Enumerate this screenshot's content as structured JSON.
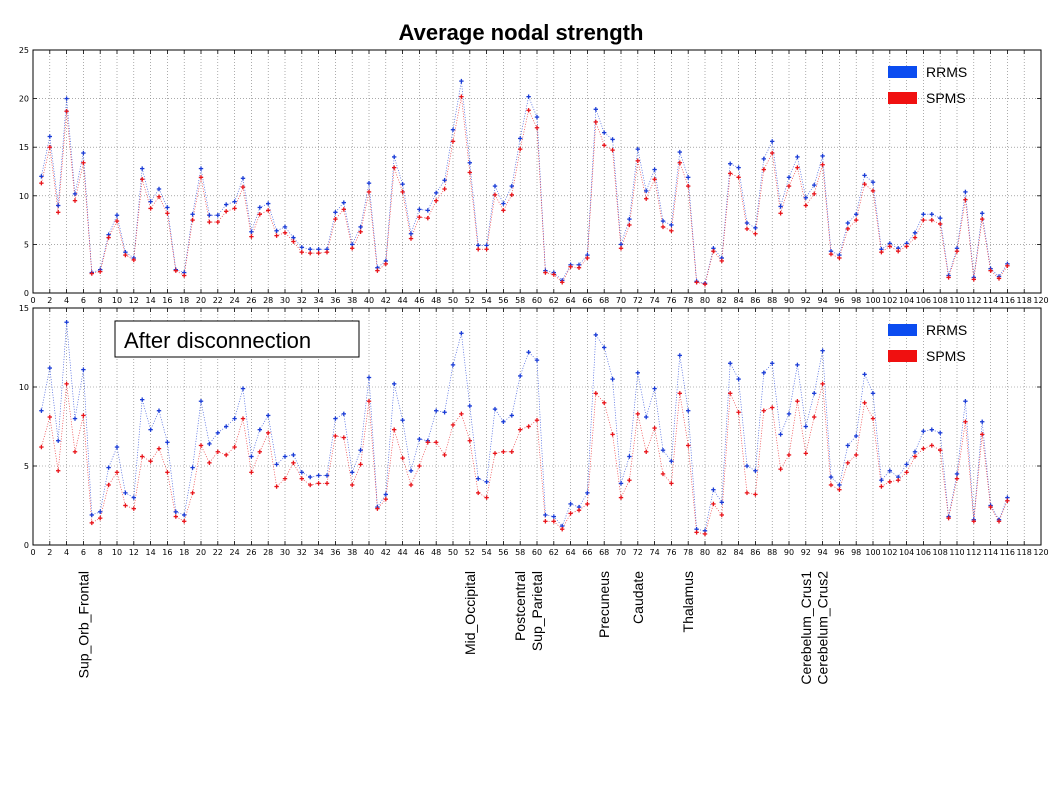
{
  "figure_title": "Average nodal strength",
  "colors": {
    "RRMS": "#1a3cd6",
    "SPMS": "#e8141a",
    "legend_RRMS": "#0b4cf0",
    "legend_SPMS": "#f01010",
    "grid": "#777777"
  },
  "region_labels": [
    {
      "label": "Sup_Orb_Frontal",
      "node": 6
    },
    {
      "label": "Mid_Occipital",
      "node": 52
    },
    {
      "label": "Postcentral",
      "node": 58
    },
    {
      "label": "Sup_Parietal",
      "node": 60
    },
    {
      "label": "Precuneus",
      "node": 68
    },
    {
      "label": "Caudate",
      "node": 72
    },
    {
      "label": "Thalamus",
      "node": 78
    },
    {
      "label": "Cerebelum_Crus1",
      "node": 92
    },
    {
      "label": "Cerebelum_Crus2",
      "node": 94
    }
  ],
  "chart_data": [
    {
      "type": "scatter",
      "title": "Average nodal strength",
      "annotation": "",
      "xlim": [
        0,
        120
      ],
      "ylim": [
        0,
        25
      ],
      "xticks": [
        0,
        2,
        4,
        6,
        8,
        10,
        12,
        14,
        16,
        18,
        20,
        22,
        24,
        26,
        28,
        30,
        32,
        34,
        36,
        38,
        40,
        42,
        44,
        46,
        48,
        50,
        52,
        54,
        56,
        58,
        60,
        62,
        64,
        66,
        68,
        70,
        72,
        74,
        76,
        78,
        80,
        82,
        84,
        86,
        88,
        90,
        92,
        94,
        96,
        98,
        100,
        102,
        104,
        106,
        108,
        110,
        112,
        114,
        116,
        118,
        120
      ],
      "yticks": [
        0,
        5,
        10,
        15,
        20,
        25
      ],
      "grid": true,
      "legend": "top-right",
      "x": [
        1,
        2,
        3,
        4,
        5,
        6,
        7,
        8,
        9,
        10,
        11,
        12,
        13,
        14,
        15,
        16,
        17,
        18,
        19,
        20,
        21,
        22,
        23,
        24,
        25,
        26,
        27,
        28,
        29,
        30,
        31,
        32,
        33,
        34,
        35,
        36,
        37,
        38,
        39,
        40,
        41,
        42,
        43,
        44,
        45,
        46,
        47,
        48,
        49,
        50,
        51,
        52,
        53,
        54,
        55,
        56,
        57,
        58,
        59,
        60,
        61,
        62,
        63,
        64,
        65,
        66,
        67,
        68,
        69,
        70,
        71,
        72,
        73,
        74,
        75,
        76,
        77,
        78,
        79,
        80,
        81,
        82,
        83,
        84,
        85,
        86,
        87,
        88,
        89,
        90,
        91,
        92,
        93,
        94,
        95,
        96,
        97,
        98,
        99,
        100,
        101,
        102,
        103,
        104,
        105,
        106,
        107,
        108,
        109,
        110,
        111,
        112,
        113,
        114,
        115,
        116
      ],
      "series": [
        {
          "name": "RRMS",
          "values": [
            12.0,
            16.1,
            9.0,
            20.0,
            10.2,
            14.4,
            2.1,
            2.4,
            6.0,
            8.0,
            4.2,
            3.6,
            12.8,
            9.4,
            10.7,
            8.8,
            2.4,
            2.1,
            8.1,
            12.8,
            8.0,
            8.0,
            9.1,
            9.4,
            11.8,
            6.3,
            8.8,
            9.2,
            6.4,
            6.8,
            5.7,
            4.7,
            4.5,
            4.5,
            4.5,
            8.3,
            9.3,
            5.0,
            6.8,
            11.3,
            2.6,
            3.3,
            14.0,
            11.2,
            6.1,
            8.6,
            8.5,
            10.3,
            11.6,
            16.8,
            21.8,
            13.4,
            4.9,
            4.9,
            11.0,
            9.2,
            11.0,
            15.9,
            20.2,
            18.1,
            2.3,
            2.1,
            1.3,
            2.9,
            2.9,
            3.9,
            18.9,
            16.5,
            15.8,
            5.0,
            7.6,
            14.8,
            10.5,
            12.7,
            7.4,
            7.0,
            14.5,
            11.9,
            1.2,
            1.0,
            4.6,
            3.6,
            13.3,
            12.9,
            7.2,
            6.7,
            13.8,
            15.6,
            8.9,
            11.9,
            14.0,
            9.8,
            11.1,
            14.1,
            4.3,
            3.9,
            7.2,
            8.1,
            12.1,
            11.4,
            4.5,
            5.1,
            4.6,
            5.1,
            6.2,
            8.1,
            8.1,
            7.7,
            1.8,
            4.6,
            10.4,
            1.6,
            8.2,
            2.5,
            1.7,
            3.0
          ]
        },
        {
          "name": "SPMS",
          "values": [
            11.3,
            15.0,
            8.3,
            18.7,
            9.5,
            13.4,
            2.0,
            2.2,
            5.7,
            7.4,
            3.9,
            3.4,
            11.7,
            8.7,
            9.9,
            8.2,
            2.3,
            1.8,
            7.5,
            11.9,
            7.3,
            7.3,
            8.4,
            8.7,
            10.9,
            5.8,
            8.1,
            8.5,
            5.9,
            6.2,
            5.3,
            4.2,
            4.1,
            4.1,
            4.2,
            7.6,
            8.6,
            4.6,
            6.3,
            10.4,
            2.3,
            3.0,
            12.9,
            10.4,
            5.6,
            7.8,
            7.7,
            9.5,
            10.7,
            15.6,
            20.2,
            12.4,
            4.5,
            4.5,
            10.1,
            8.5,
            10.1,
            14.8,
            18.8,
            17.0,
            2.1,
            1.9,
            1.1,
            2.7,
            2.6,
            3.6,
            17.6,
            15.2,
            14.7,
            4.6,
            7.0,
            13.6,
            9.7,
            11.7,
            6.8,
            6.4,
            13.4,
            11.0,
            1.1,
            0.9,
            4.3,
            3.3,
            12.3,
            11.9,
            6.6,
            6.1,
            12.7,
            14.4,
            8.2,
            11.0,
            12.9,
            9.0,
            10.2,
            13.2,
            4.0,
            3.6,
            6.6,
            7.5,
            11.2,
            10.5,
            4.2,
            4.8,
            4.3,
            4.8,
            5.7,
            7.5,
            7.5,
            7.1,
            1.6,
            4.3,
            9.6,
            1.4,
            7.6,
            2.3,
            1.5,
            2.8
          ]
        }
      ]
    },
    {
      "type": "scatter",
      "title": "",
      "annotation": "After disconnection",
      "xlim": [
        0,
        120
      ],
      "ylim": [
        0,
        15
      ],
      "xticks": [
        0,
        2,
        4,
        6,
        8,
        10,
        12,
        14,
        16,
        18,
        20,
        22,
        24,
        26,
        28,
        30,
        32,
        34,
        36,
        38,
        40,
        42,
        44,
        46,
        48,
        50,
        52,
        54,
        56,
        58,
        60,
        62,
        64,
        66,
        68,
        70,
        72,
        74,
        76,
        78,
        80,
        82,
        84,
        86,
        88,
        90,
        92,
        94,
        96,
        98,
        100,
        102,
        104,
        106,
        108,
        110,
        112,
        114,
        116,
        118,
        120
      ],
      "yticks": [
        0,
        5,
        10,
        15
      ],
      "grid": true,
      "legend": "top-right",
      "x": [
        1,
        2,
        3,
        4,
        5,
        6,
        7,
        8,
        9,
        10,
        11,
        12,
        13,
        14,
        15,
        16,
        17,
        18,
        19,
        20,
        21,
        22,
        23,
        24,
        25,
        26,
        27,
        28,
        29,
        30,
        31,
        32,
        33,
        34,
        35,
        36,
        37,
        38,
        39,
        40,
        41,
        42,
        43,
        44,
        45,
        46,
        47,
        48,
        49,
        50,
        51,
        52,
        53,
        54,
        55,
        56,
        57,
        58,
        59,
        60,
        61,
        62,
        63,
        64,
        65,
        66,
        67,
        68,
        69,
        70,
        71,
        72,
        73,
        74,
        75,
        76,
        77,
        78,
        79,
        80,
        81,
        82,
        83,
        84,
        85,
        86,
        87,
        88,
        89,
        90,
        91,
        92,
        93,
        94,
        95,
        96,
        97,
        98,
        99,
        100,
        101,
        102,
        103,
        104,
        105,
        106,
        107,
        108,
        109,
        110,
        111,
        112,
        113,
        114,
        115,
        116
      ],
      "series": [
        {
          "name": "RRMS",
          "values": [
            8.5,
            11.2,
            6.6,
            14.1,
            8.0,
            11.1,
            1.9,
            2.1,
            4.9,
            6.2,
            3.3,
            3.0,
            9.2,
            7.3,
            8.5,
            6.5,
            2.1,
            1.9,
            4.9,
            9.1,
            6.4,
            7.1,
            7.5,
            8.0,
            9.9,
            5.6,
            7.3,
            8.2,
            5.1,
            5.6,
            5.7,
            4.6,
            4.3,
            4.4,
            4.4,
            8.0,
            8.3,
            4.6,
            6.0,
            10.6,
            2.4,
            3.2,
            10.2,
            7.9,
            4.7,
            6.7,
            6.6,
            8.5,
            8.4,
            11.4,
            13.4,
            8.8,
            4.2,
            4.0,
            8.6,
            7.8,
            8.2,
            10.7,
            12.2,
            11.7,
            1.9,
            1.8,
            1.2,
            2.6,
            2.4,
            3.3,
            13.3,
            12.5,
            10.5,
            3.9,
            5.6,
            10.9,
            8.1,
            9.9,
            6.0,
            5.3,
            12.0,
            8.5,
            1.0,
            0.9,
            3.5,
            2.7,
            11.5,
            10.5,
            5.0,
            4.7,
            10.9,
            11.5,
            7.0,
            8.3,
            11.4,
            7.5,
            9.6,
            12.3,
            4.3,
            3.8,
            6.3,
            6.9,
            10.8,
            9.6,
            4.1,
            4.7,
            4.3,
            5.1,
            5.9,
            7.2,
            7.3,
            7.1,
            1.8,
            4.5,
            9.1,
            1.6,
            7.8,
            2.5,
            1.6,
            3.0
          ]
        },
        {
          "name": "SPMS",
          "values": [
            6.2,
            8.1,
            4.7,
            10.2,
            5.9,
            8.2,
            1.4,
            1.7,
            3.8,
            4.6,
            2.5,
            2.3,
            5.6,
            5.3,
            6.1,
            4.6,
            1.8,
            1.5,
            3.3,
            6.3,
            5.2,
            5.9,
            5.7,
            6.2,
            8.0,
            4.6,
            5.9,
            7.1,
            3.7,
            4.2,
            5.2,
            4.2,
            3.8,
            3.9,
            3.9,
            6.9,
            6.8,
            3.8,
            5.1,
            9.1,
            2.3,
            2.9,
            7.3,
            5.5,
            3.8,
            5.0,
            6.5,
            6.5,
            5.7,
            7.6,
            8.3,
            6.6,
            3.3,
            3.0,
            5.8,
            5.9,
            5.9,
            7.3,
            7.5,
            7.9,
            1.5,
            1.5,
            1.0,
            2.0,
            2.2,
            2.6,
            9.6,
            9.0,
            7.0,
            3.0,
            4.1,
            8.3,
            5.9,
            7.4,
            4.5,
            3.9,
            9.6,
            6.3,
            0.8,
            0.7,
            2.6,
            1.9,
            9.6,
            8.4,
            3.3,
            3.2,
            8.5,
            8.7,
            4.8,
            5.7,
            9.1,
            5.8,
            8.1,
            10.2,
            3.8,
            3.5,
            5.2,
            5.7,
            9.0,
            8.0,
            3.7,
            4.0,
            4.1,
            4.6,
            5.6,
            6.1,
            6.3,
            6.0,
            1.7,
            4.2,
            7.8,
            1.5,
            7.0,
            2.4,
            1.5,
            2.8
          ]
        }
      ]
    }
  ]
}
